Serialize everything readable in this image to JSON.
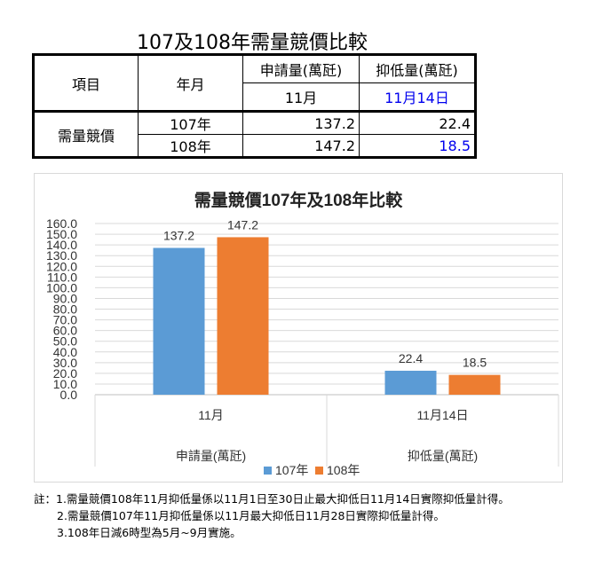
{
  "page_title": "107及108年需量競價比較",
  "table": {
    "header_item": "項目",
    "header_yearmonth": "年月",
    "header_apply": "申請量(萬瓩)",
    "header_reduce": "抑低量(萬瓩)",
    "sub_apply": "11月",
    "sub_reduce": "11月14日",
    "row_label": "需量競價",
    "rows": [
      {
        "year": "107年",
        "apply": "137.2",
        "reduce": "22.4"
      },
      {
        "year": "108年",
        "apply": "147.2",
        "reduce": "18.5"
      }
    ],
    "highlight_color": "#0000ee"
  },
  "chart_data": {
    "type": "bar",
    "title": "需量競價107年及108年比較",
    "categories": [
      "11月",
      "11月14日"
    ],
    "category_groups": [
      "申請量(萬瓩)",
      "抑低量(萬瓩)"
    ],
    "series": [
      {
        "name": "107年",
        "values": [
          137.2,
          22.4
        ],
        "labels": [
          "137.2",
          "22.4"
        ],
        "color": "#5b9bd5"
      },
      {
        "name": "108年",
        "values": [
          147.2,
          18.5
        ],
        "labels": [
          "147.2",
          "18.5"
        ],
        "color": "#ed7d31"
      }
    ],
    "ylim": [
      0,
      160
    ],
    "yticks": [
      "0.0",
      "10.0",
      "20.0",
      "30.0",
      "40.0",
      "50.0",
      "60.0",
      "70.0",
      "80.0",
      "90.0",
      "100.0",
      "110.0",
      "120.0",
      "130.0",
      "140.0",
      "150.0",
      "160.0"
    ],
    "grid": true,
    "legend": "bottom"
  },
  "notes": [
    "註：1.需量競價108年11月抑低量係以11月1日至30日止最大抑低日11月14日實際抑低量計得。",
    "2.需量競價107年11月抑低量係以11月最大抑低日11月28日實際抑低量計得。",
    "3.108年日減6時型為5月~9月實施。"
  ]
}
